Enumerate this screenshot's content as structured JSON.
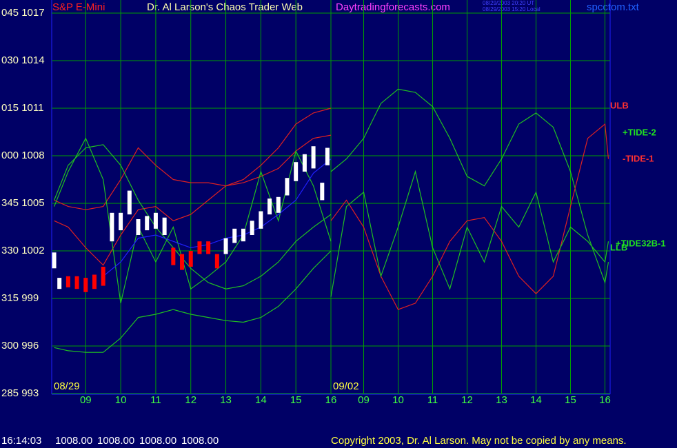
{
  "header": {
    "symbol": "S&P E-Mini",
    "title": "Dr. Al Larson's Chaos Trader Web",
    "site": "Daytradingforecasts.com",
    "timestamps": [
      "08/29/2003 20:20 UT",
      "08/29/2003 15:20 Local"
    ],
    "file": "spcctom.txt"
  },
  "footer": {
    "time": "16:14:03",
    "quote": [
      "1008.00",
      "1008.00",
      "1008.00",
      "1008.00"
    ],
    "copyright": "Copyright 2003, Dr. Al Larson. May not be copied by any means."
  },
  "chart_data": {
    "type": "line",
    "grid": true,
    "ylim": [
      993,
      1017
    ],
    "yticks": [
      {
        "value": 1017,
        "label": "045 1017"
      },
      {
        "value": 1014,
        "label": "030 1014"
      },
      {
        "value": 1011,
        "label": "015 1011"
      },
      {
        "value": 1008,
        "label": "000 1008"
      },
      {
        "value": 1005,
        "label": "345 1005"
      },
      {
        "value": 1002,
        "label": "330 1002"
      },
      {
        "value": 999,
        "label": "315 999"
      },
      {
        "value": 996,
        "label": "300 996"
      },
      {
        "value": 993,
        "label": "285 993"
      }
    ],
    "right_labels": [
      {
        "text": "ULB",
        "color": "#ff3030"
      },
      {
        "text": "+TIDE-2",
        "color": "#20e020"
      },
      {
        "text": "-TIDE-1",
        "color": "#ff3030"
      },
      {
        "text": "+TIDE32B-1",
        "color": "#20e020"
      },
      {
        "text": "LLB",
        "color": "#20e020"
      }
    ],
    "days": [
      {
        "label": "08/29",
        "xlim": [
          8.03,
          16
        ],
        "xticks": [
          {
            "value": 9,
            "label": "09"
          },
          10,
          11,
          12,
          13,
          14,
          15,
          16
        ],
        "x": [
          8.1,
          8.5,
          9,
          9.5,
          10,
          10.5,
          11,
          11.5,
          12,
          12.5,
          13,
          13.5,
          14,
          14.5,
          15,
          15.5,
          16
        ],
        "series": [
          {
            "color": "#e02020",
            "values": [
              1005.2,
              1004.8,
              1004.6,
              1004.8,
              1006.5,
              1008.5,
              1007.4,
              1006.5,
              1006.3,
              1006.3,
              1006.1,
              1006.5,
              1007.4,
              1008.5,
              1010.0,
              1010.7,
              1011.0
            ]
          },
          {
            "color": "#e02020",
            "values": [
              1003.9,
              1003.5,
              1002.2,
              1001.1,
              1003.0,
              1004.6,
              1004.8,
              1003.9,
              1004.3,
              1005.2,
              1006.1,
              1006.3,
              1006.7,
              1007.2,
              1008.3,
              1009.1,
              1009.3
            ]
          },
          {
            "color": "#20c020",
            "values": [
              995.9,
              995.7,
              995.6,
              995.6,
              996.5,
              997.8,
              998.0,
              998.3,
              998.0,
              997.8,
              997.6,
              997.5,
              997.8,
              998.5,
              999.6,
              1000.9,
              1002.0
            ]
          },
          {
            "color": "#20c020",
            "values": [
              1005.2,
              1007.4,
              1008.5,
              1008.7,
              1007.4,
              1005.2,
              1003.5,
              1002.2,
              1000.9,
              1000.0,
              999.6,
              999.8,
              1000.4,
              1001.3,
              1002.6,
              1003.5,
              1004.3
            ]
          },
          {
            "color": "#20c020",
            "values": [
              1004.8,
              1007.0,
              1009.1,
              1006.5,
              998.7,
              1003.5,
              1001.3,
              1003.5,
              999.6,
              1000.4,
              1001.3,
              1003.0,
              1007.0,
              1003.9,
              1008.3,
              1006.1,
              1002.6
            ]
          },
          {
            "color": "#2020ff",
            "values": [
              null,
              null,
              null,
              1000.4,
              1001.3,
              1002.8,
              1003.0,
              1002.6,
              1002.2,
              1002.4,
              1002.8,
              1003.0,
              1003.5,
              1004.3,
              1005.2,
              1006.9,
              1007.8
            ]
          }
        ],
        "price": {
          "x": [
            8.1,
            8.25,
            8.5,
            8.75,
            9,
            9.25,
            9.5,
            9.75,
            10,
            10.25,
            10.5,
            10.75,
            11,
            11.25,
            11.5,
            11.75,
            12,
            12.25,
            12.5,
            12.75,
            13,
            13.25,
            13.5,
            13.75,
            14,
            14.25,
            14.5,
            14.75,
            15,
            15.25,
            15.5,
            15.75,
            15.9
          ],
          "low": [
            1000.9,
            999.6,
            999.7,
            999.6,
            999.4,
            999.6,
            999.8,
            1002.6,
            1003.3,
            1004.3,
            1003.0,
            1003.3,
            1003.4,
            1003.0,
            1001.1,
            1000.8,
            1001.0,
            1001.8,
            1001.8,
            1000.9,
            1001.8,
            1002.5,
            1002.6,
            1003.0,
            1003.4,
            1004.3,
            1004.4,
            1005.5,
            1006.4,
            1007.0,
            1007.2,
            1005.2,
            1007.4
          ],
          "high": [
            1001.9,
            1000.3,
            1000.4,
            1000.4,
            1000.3,
            1000.5,
            1001.0,
            1004.4,
            1004.4,
            1005.8,
            1004.0,
            1004.2,
            1004.4,
            1004.1,
            1002.2,
            1001.8,
            1002.0,
            1002.6,
            1002.6,
            1001.8,
            1002.8,
            1003.4,
            1003.4,
            1003.9,
            1004.5,
            1005.3,
            1005.4,
            1006.6,
            1007.6,
            1008.1,
            1008.6,
            1006.3,
            1008.5
          ],
          "colors": [
            "#ffffff",
            "#ffffff",
            "#ff0000",
            "#ff0000",
            "#ff0000",
            "#ff0000",
            "#ff0000",
            "#ffffff",
            "#ffffff",
            "#ffffff",
            "#ffffff",
            "#ffffff",
            "#ffffff",
            "#ffffff",
            "#ff0000",
            "#ff0000",
            "#ff0000",
            "#ff0000",
            "#ff0000",
            "#ff0000",
            "#ffffff",
            "#ffffff",
            "#ffffff",
            "#ffffff",
            "#ffffff",
            "#ffffff",
            "#ffffff",
            "#ffffff",
            "#ffffff",
            "#ffffff",
            "#ffffff",
            "#ffffff",
            "#ffffff"
          ]
        }
      },
      {
        "label": "09/02",
        "xlim": [
          8.05,
          16.15
        ],
        "xticks": [
          {
            "value": 9,
            "label": "09"
          },
          10,
          11,
          12,
          13,
          14,
          15,
          16
        ],
        "x": [
          8.05,
          8.5,
          9,
          9.5,
          10,
          10.5,
          11,
          11.5,
          12,
          12.5,
          13,
          13.5,
          14,
          14.5,
          15,
          15.5,
          16,
          16.1
        ],
        "series": [
          {
            "color": "#20c020",
            "values": [
              1007.0,
              1007.8,
              1009.1,
              1011.3,
              1012.2,
              1012.0,
              1011.1,
              1009.1,
              1006.7,
              1006.1,
              1007.8,
              1010.0,
              1010.7,
              1009.8,
              1007.0,
              1003.0,
              1000.0,
              1001.3
            ]
          },
          {
            "color": "#e02020",
            "values": [
              1003.9,
              1005.2,
              1003.5,
              1000.4,
              998.3,
              998.7,
              1000.4,
              1002.6,
              1003.9,
              1004.1,
              1002.6,
              1000.4,
              999.3,
              1000.4,
              1004.8,
              1009.1,
              1010.0,
              1007.8
            ]
          },
          {
            "color": "#20c020",
            "values": [
              999.1,
              1004.8,
              1005.7,
              1000.4,
              1003.5,
              1007.0,
              1002.2,
              999.6,
              1003.5,
              1001.3,
              1004.8,
              1003.5,
              1005.7,
              1001.3,
              1003.5,
              1002.6,
              1001.3,
              1002.6
            ]
          }
        ]
      }
    ]
  }
}
